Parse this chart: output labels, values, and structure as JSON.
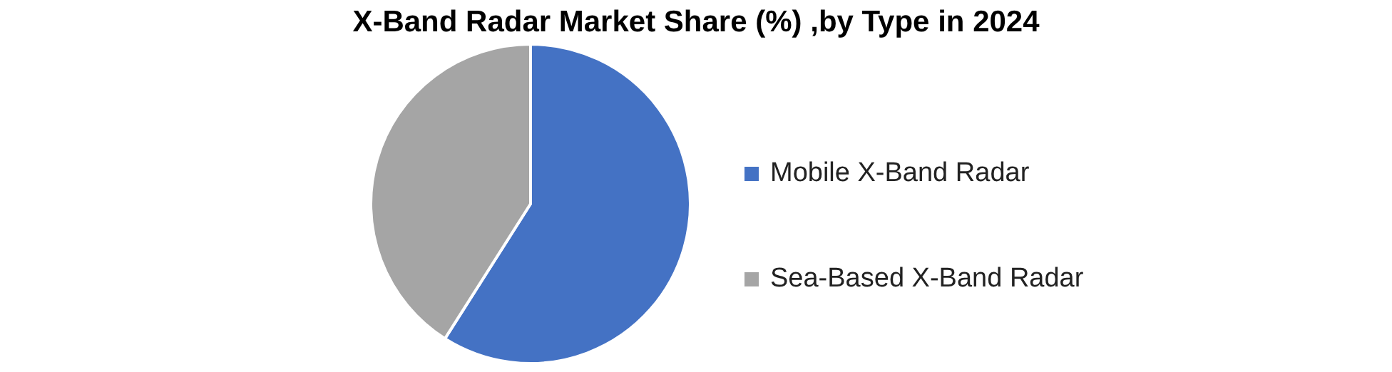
{
  "chart_data": {
    "type": "pie",
    "title": "X-Band Radar Market Share (%) ,by Type in 2024",
    "categories": [
      "Mobile X-Band Radar",
      "Sea-Based X-Band Radar"
    ],
    "values": [
      59,
      41
    ],
    "colors": [
      "#4472c4",
      "#a5a5a5"
    ],
    "legend": "right"
  }
}
